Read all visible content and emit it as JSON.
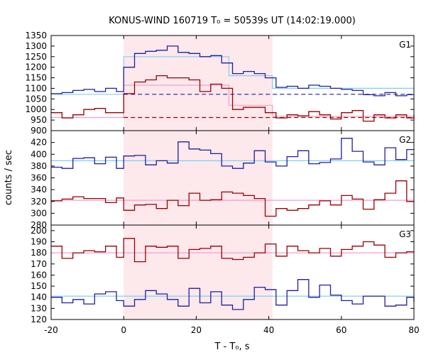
{
  "chart_data": {
    "type": "line",
    "title": "KONUS-WIND 160719 T₀ = 50539s UT (14:02:19.000)",
    "xlabel": "T - T₀, s",
    "ylabel": "counts / sec",
    "xlim": [
      -20,
      80
    ],
    "x_ticks": [
      -20,
      0,
      20,
      40,
      60,
      80
    ],
    "highlight_interval": [
      0,
      41
    ],
    "colors": {
      "blue": "#1f1f9f",
      "red": "#990000",
      "cyan": "#7fd0f0",
      "pink": "#f0a0d0",
      "shade": "#fde8ec"
    },
    "panels": [
      {
        "label": "G1",
        "ylim": [
          900,
          1350
        ],
        "y_ticks": [
          900,
          950,
          1000,
          1050,
          1100,
          1150,
          1200,
          1250,
          1300,
          1350
        ],
        "series": [
          {
            "color": "blue",
            "x": [
              -20,
              -17,
              -14,
              -11,
              -8,
              -5,
              -2,
              0,
              3,
              6,
              9,
              12,
              15,
              18,
              21,
              24,
              27,
              30,
              33,
              36,
              39,
              42,
              45,
              48,
              51,
              54,
              57,
              60,
              63,
              66,
              69,
              72,
              75,
              78,
              80
            ],
            "y": [
              1075,
              1080,
              1090,
              1095,
              1085,
              1100,
              1085,
              1200,
              1265,
              1275,
              1280,
              1300,
              1270,
              1265,
              1250,
              1255,
              1220,
              1170,
              1180,
              1170,
              1150,
              1105,
              1110,
              1100,
              1115,
              1110,
              1100,
              1095,
              1090,
              1070,
              1065,
              1080,
              1065,
              1070,
              1070
            ]
          },
          {
            "color": "red",
            "x": [
              -20,
              -17,
              -14,
              -11,
              -8,
              -5,
              -2,
              0,
              3,
              6,
              9,
              12,
              15,
              18,
              21,
              24,
              27,
              30,
              33,
              36,
              39,
              42,
              45,
              48,
              51,
              54,
              57,
              60,
              63,
              66,
              69,
              72,
              75,
              78,
              80
            ],
            "y": [
              985,
              960,
              975,
              1000,
              1005,
              985,
              985,
              1075,
              1130,
              1140,
              1160,
              1150,
              1150,
              1140,
              1085,
              1120,
              1100,
              1000,
              1010,
              1010,
              985,
              960,
              975,
              970,
              990,
              975,
              955,
              985,
              995,
              945,
              975,
              960,
              975,
              960,
              975
            ]
          }
        ],
        "fit_lines": [
          {
            "color": "cyan",
            "style": "solid",
            "x": [
              -20,
              0,
              0,
              29,
              29,
              41,
              41,
              80
            ],
            "y": [
              1072,
              1072,
              1250,
              1250,
              1160,
              1160,
              1100,
              1100
            ]
          },
          {
            "color": "blue",
            "style": "dashed",
            "x": [
              0,
              80
            ],
            "y": [
              1072,
              1072
            ]
          },
          {
            "color": "pink",
            "style": "solid",
            "x": [
              -20,
              0,
              0,
              29,
              29,
              41,
              41,
              80
            ],
            "y": [
              962,
              962,
              1115,
              1115,
              1020,
              1020,
              968,
              968
            ]
          },
          {
            "color": "red",
            "style": "dashed",
            "x": [
              0,
              80
            ],
            "y": [
              962,
              962
            ]
          }
        ]
      },
      {
        "label": "G2",
        "ylim": [
          280,
          440
        ],
        "y_ticks": [
          280,
          300,
          320,
          340,
          360,
          380,
          400,
          420
        ],
        "series": [
          {
            "color": "blue",
            "x": [
              -20,
              -17,
              -14,
              -11,
              -8,
              -5,
              -2,
              0,
              3,
              6,
              9,
              12,
              15,
              18,
              21,
              24,
              27,
              30,
              33,
              36,
              39,
              42,
              45,
              48,
              51,
              54,
              57,
              60,
              63,
              66,
              69,
              72,
              75,
              78,
              80
            ],
            "y": [
              378,
              376,
              393,
              394,
              384,
              395,
              376,
              397,
              398,
              382,
              389,
              385,
              421,
              409,
              407,
              401,
              380,
              376,
              385,
              406,
              387,
              380,
              396,
              406,
              384,
              386,
              392,
              427,
              405,
              387,
              382,
              411,
              391,
              408,
              408
            ]
          },
          {
            "color": "red",
            "x": [
              -20,
              -17,
              -14,
              -11,
              -8,
              -5,
              -2,
              0,
              3,
              6,
              9,
              12,
              15,
              18,
              21,
              24,
              27,
              30,
              33,
              36,
              39,
              42,
              45,
              48,
              51,
              54,
              57,
              60,
              63,
              66,
              69,
              72,
              75,
              78,
              80
            ],
            "y": [
              321,
              324,
              328,
              325,
              325,
              318,
              326,
              305,
              314,
              315,
              308,
              322,
              313,
              334,
              322,
              323,
              336,
              334,
              330,
              325,
              295,
              308,
              305,
              308,
              314,
              321,
              314,
              330,
              324,
              307,
              323,
              334,
              355,
              320,
              320
            ]
          }
        ],
        "fit_lines": [
          {
            "color": "cyan",
            "style": "solid",
            "x": [
              -20,
              80
            ],
            "y": [
              389,
              389
            ]
          },
          {
            "color": "pink",
            "style": "solid",
            "x": [
              -20,
              80
            ],
            "y": [
              322,
              322
            ]
          }
        ]
      },
      {
        "label": "G3",
        "ylim": [
          120,
          205
        ],
        "y_ticks": [
          120,
          130,
          140,
          150,
          160,
          170,
          180,
          190,
          200
        ],
        "series": [
          {
            "color": "blue",
            "x": [
              -20,
              -17,
              -14,
              -11,
              -8,
              -5,
              -2,
              0,
              3,
              6,
              9,
              12,
              15,
              18,
              21,
              24,
              27,
              30,
              33,
              36,
              39,
              42,
              45,
              48,
              51,
              54,
              57,
              60,
              63,
              66,
              69,
              72,
              75,
              78,
              80
            ],
            "y": [
              140,
              135,
              138,
              134,
              143,
              145,
              137,
              132,
              138,
              146,
              143,
              138,
              132,
              148,
              135,
              145,
              133,
              129,
              138,
              149,
              147,
              133,
              146,
              156,
              140,
              151,
              142,
              137,
              134,
              141,
              141,
              132,
              133,
              140,
              136
            ]
          },
          {
            "color": "red",
            "x": [
              -20,
              -17,
              -14,
              -11,
              -8,
              -5,
              -2,
              0,
              3,
              6,
              9,
              12,
              15,
              18,
              21,
              24,
              27,
              30,
              33,
              36,
              39,
              42,
              45,
              48,
              51,
              54,
              57,
              60,
              63,
              66,
              69,
              72,
              75,
              78,
              80
            ],
            "y": [
              186,
              175,
              180,
              182,
              181,
              186,
              176,
              193,
              172,
              186,
              185,
              186,
              175,
              183,
              184,
              186,
              175,
              174,
              176,
              180,
              188,
              177,
              186,
              182,
              180,
              184,
              177,
              183,
              186,
              190,
              187,
              176,
              180,
              181,
              181
            ]
          }
        ],
        "fit_lines": [
          {
            "color": "cyan",
            "style": "solid",
            "x": [
              -20,
              80
            ],
            "y": [
              141,
              141
            ]
          },
          {
            "color": "pink",
            "style": "solid",
            "x": [
              -20,
              80
            ],
            "y": [
              180,
              180
            ]
          }
        ]
      }
    ]
  }
}
